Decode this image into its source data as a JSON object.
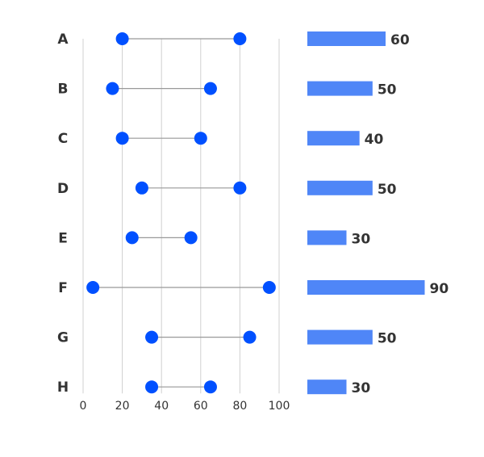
{
  "chart_data": [
    {
      "type": "dumbbell",
      "categories": [
        "A",
        "B",
        "C",
        "D",
        "E",
        "F",
        "G",
        "H"
      ],
      "start": [
        20,
        15,
        20,
        30,
        25,
        5,
        35,
        35
      ],
      "end": [
        80,
        65,
        60,
        80,
        55,
        95,
        85,
        65
      ],
      "xlim": [
        0,
        100
      ],
      "xticks": [
        0,
        20,
        40,
        60,
        80,
        100
      ],
      "grid": true,
      "colors": {
        "dot": "#0050ff",
        "line": "#999999",
        "grid": "#d0d0d0"
      }
    },
    {
      "type": "bar",
      "orientation": "horizontal",
      "categories": [
        "A",
        "B",
        "C",
        "D",
        "E",
        "F",
        "G",
        "H"
      ],
      "values": [
        60,
        50,
        40,
        50,
        30,
        90,
        50,
        30
      ],
      "data_labels": true,
      "colors": {
        "bar": "#4f86f7"
      }
    }
  ]
}
